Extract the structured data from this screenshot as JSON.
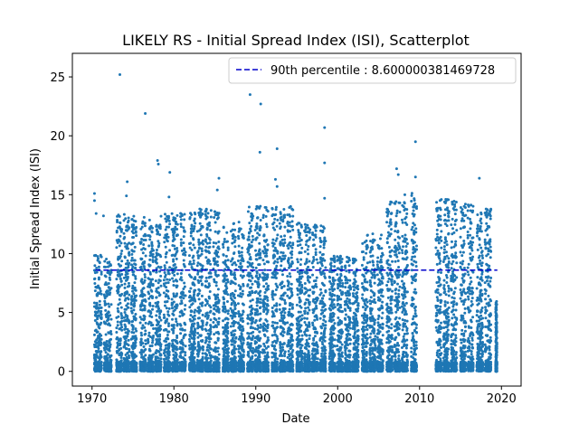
{
  "chart_data": {
    "type": "scatter",
    "title": "LIKELY RS - Initial Spread Index (ISI), Scatterplot",
    "xlabel": "Date",
    "ylabel": "Initial Spread Index (ISI)",
    "xlim": [
      1967.6,
      2022.4
    ],
    "ylim": [
      -1.25,
      27.0
    ],
    "xticks": [
      1970,
      1980,
      1990,
      2000,
      2010,
      2020
    ],
    "yticks": [
      0,
      5,
      10,
      15,
      20,
      25
    ],
    "xtick_labels": [
      "1970",
      "1980",
      "1990",
      "2000",
      "2010",
      "2020"
    ],
    "ytick_labels": [
      "0",
      "5",
      "10",
      "15",
      "20",
      "25"
    ],
    "grid": false,
    "legend": {
      "position": "top-right",
      "entries": [
        "90th percentile : 8.600000381469728"
      ]
    },
    "reference_line": {
      "name": "90th percentile : 8.600000381469728",
      "y": 8.6,
      "x_range": [
        1970.4,
        2019.5
      ],
      "style": "dashed",
      "color": "#0000cc"
    },
    "series": [
      {
        "color": "#1f77b4",
        "points_outliers": [
          [
            1970.3,
            15.1
          ],
          [
            1970.3,
            14.5
          ],
          [
            1970.5,
            13.4
          ],
          [
            1971.4,
            13.2
          ],
          [
            1973.4,
            25.2
          ],
          [
            1974.3,
            16.1
          ],
          [
            1974.2,
            14.9
          ],
          [
            1976.5,
            21.9
          ],
          [
            1978.0,
            17.9
          ],
          [
            1978.1,
            17.6
          ],
          [
            1979.5,
            16.9
          ],
          [
            1979.4,
            14.8
          ],
          [
            1985.5,
            16.4
          ],
          [
            1985.3,
            15.4
          ],
          [
            1989.3,
            23.5
          ],
          [
            1990.6,
            22.7
          ],
          [
            1990.5,
            18.6
          ],
          [
            1992.6,
            18.9
          ],
          [
            1992.4,
            16.3
          ],
          [
            1992.6,
            15.7
          ],
          [
            1998.4,
            20.7
          ],
          [
            1998.4,
            17.7
          ],
          [
            1998.4,
            14.7
          ],
          [
            2007.2,
            17.2
          ],
          [
            2007.4,
            16.7
          ],
          [
            2008.2,
            15.0
          ],
          [
            2009.5,
            19.5
          ],
          [
            2009.5,
            16.5
          ],
          [
            2017.3,
            16.4
          ],
          [
            2013.2,
            14.6
          ]
        ],
        "dense_bands": [
          {
            "x_start": 1970.3,
            "x_end": 1972.7,
            "y_max": 9.9
          },
          {
            "x_start": 1973.0,
            "x_end": 1975.7,
            "y_max": 13.4
          },
          {
            "x_start": 1975.9,
            "x_end": 1978.7,
            "y_max": 13.2
          },
          {
            "x_start": 1978.8,
            "x_end": 1981.7,
            "y_max": 13.6
          },
          {
            "x_start": 1981.9,
            "x_end": 1985.8,
            "y_max": 13.8
          },
          {
            "x_start": 1986.0,
            "x_end": 1988.8,
            "y_max": 12.7
          },
          {
            "x_start": 1989.0,
            "x_end": 1991.8,
            "y_max": 14.1
          },
          {
            "x_start": 1992.0,
            "x_end": 1994.8,
            "y_max": 14.0
          },
          {
            "x_start": 1995.0,
            "x_end": 1998.8,
            "y_max": 12.6
          },
          {
            "x_start": 1999.0,
            "x_end": 2002.8,
            "y_max": 9.8
          },
          {
            "x_start": 2003.0,
            "x_end": 2005.8,
            "y_max": 11.7
          },
          {
            "x_start": 2006.0,
            "x_end": 2008.8,
            "y_max": 14.5
          },
          {
            "x_start": 2009.0,
            "x_end": 2009.9,
            "y_max": 15.2
          },
          {
            "x_start": 2012.0,
            "x_end": 2014.8,
            "y_max": 14.6
          },
          {
            "x_start": 2015.0,
            "x_end": 2016.8,
            "y_max": 14.4
          },
          {
            "x_start": 2017.0,
            "x_end": 2019.0,
            "y_max": 13.8
          },
          {
            "x_start": 2019.3,
            "x_end": 2019.5,
            "y_max": 6.0
          }
        ]
      }
    ]
  }
}
